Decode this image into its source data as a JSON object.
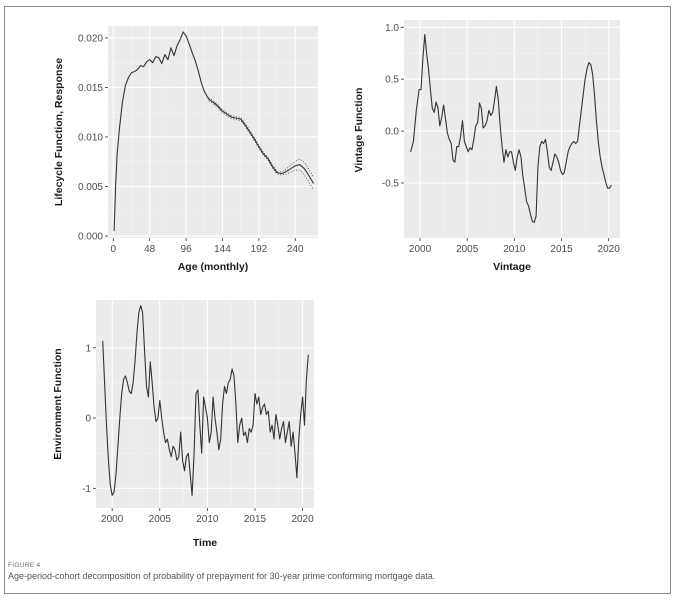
{
  "figure": {
    "label": "FIGURE 4",
    "caption": "Age-period-cohort decomposition of probability of prepayment for 30-year prime conforming mortgage data."
  },
  "chart_data": [
    {
      "id": "lifecycle",
      "type": "line",
      "xlabel": "Age (monthly)",
      "ylabel": "Lifecycle Function, Response",
      "xlim": [
        -7,
        270
      ],
      "ylim": [
        -0.0002,
        0.0212
      ],
      "xticks": [
        0,
        48,
        96,
        144,
        192,
        240
      ],
      "xtick_labels": [
        "0",
        "48",
        "96",
        "144",
        "192",
        "240"
      ],
      "yticks": [
        0.0,
        0.005,
        0.01,
        0.015,
        0.02
      ],
      "ytick_labels": [
        "0.000",
        "0.005",
        "0.010",
        "0.015",
        "0.020"
      ],
      "grid": true,
      "series": [
        {
          "style": "solid",
          "x": [
            1,
            3,
            5,
            8,
            12,
            16,
            20,
            24,
            28,
            32,
            36,
            40,
            44,
            48,
            52,
            56,
            60,
            64,
            68,
            72,
            76,
            80,
            84,
            88,
            92,
            96,
            100,
            104,
            108,
            112,
            116,
            120,
            126,
            132,
            138,
            144,
            150,
            156,
            162,
            168,
            174,
            180,
            186,
            192,
            198,
            204,
            210,
            216,
            222,
            228,
            234,
            240,
            246,
            252,
            258,
            264
          ],
          "y": [
            0.0005,
            0.005,
            0.0082,
            0.0108,
            0.0135,
            0.0152,
            0.016,
            0.0165,
            0.0166,
            0.0168,
            0.0172,
            0.0171,
            0.0176,
            0.0178,
            0.0175,
            0.0181,
            0.018,
            0.0174,
            0.0183,
            0.0178,
            0.019,
            0.0182,
            0.0192,
            0.0198,
            0.0206,
            0.0202,
            0.0194,
            0.0185,
            0.0177,
            0.0167,
            0.0155,
            0.0146,
            0.0138,
            0.0135,
            0.0131,
            0.0126,
            0.0123,
            0.012,
            0.0119,
            0.0118,
            0.0112,
            0.0105,
            0.0098,
            0.009,
            0.0083,
            0.0078,
            0.007,
            0.0064,
            0.0063,
            0.0065,
            0.0068,
            0.0071,
            0.0072,
            0.0068,
            0.0061,
            0.0053
          ]
        },
        {
          "style": "dotted",
          "x": [
            126,
            132,
            138,
            144,
            150,
            156,
            162,
            168,
            174,
            180,
            186,
            192,
            198,
            204,
            210,
            216,
            222,
            228,
            234,
            240,
            246,
            252,
            258,
            264
          ],
          "y": [
            0.01395,
            0.01365,
            0.01325,
            0.01275,
            0.01245,
            0.01215,
            0.01205,
            0.01195,
            0.01135,
            0.01065,
            0.00995,
            0.00915,
            0.00845,
            0.00795,
            0.00715,
            0.00655,
            0.00645,
            0.00675,
            0.00715,
            0.00755,
            0.00775,
            0.00745,
            0.00675,
            0.00595
          ]
        },
        {
          "style": "dotted",
          "x": [
            126,
            132,
            138,
            144,
            150,
            156,
            162,
            168,
            174,
            180,
            186,
            192,
            198,
            204,
            210,
            216,
            222,
            228,
            234,
            240,
            246,
            252,
            258,
            264
          ],
          "y": [
            0.01365,
            0.01335,
            0.01295,
            0.01245,
            0.01215,
            0.01185,
            0.01175,
            0.01165,
            0.01105,
            0.01035,
            0.00965,
            0.00885,
            0.00815,
            0.00765,
            0.00685,
            0.00625,
            0.00615,
            0.00625,
            0.00645,
            0.00665,
            0.00665,
            0.00615,
            0.00545,
            0.00465
          ]
        }
      ]
    },
    {
      "id": "vintage",
      "type": "line",
      "xlabel": "Vintage",
      "ylabel": "Vintage Function",
      "xlim": [
        1998.3,
        2021.2
      ],
      "ylim": [
        -1.03,
        1.07
      ],
      "xticks": [
        2000,
        2005,
        2010,
        2015,
        2020
      ],
      "xtick_labels": [
        "2000",
        "2005",
        "2010",
        "2015",
        "2020"
      ],
      "yticks": [
        -0.5,
        0.0,
        0.5,
        1.0
      ],
      "ytick_labels": [
        "-0.5",
        "0.0",
        "0.5",
        "1.0"
      ],
      "grid": true,
      "series": [
        {
          "style": "solid",
          "x": [
            1999.0,
            1999.3,
            1999.6,
            1999.9,
            2000.1,
            2000.3,
            2000.5,
            2000.7,
            2000.9,
            2001.1,
            2001.3,
            2001.5,
            2001.7,
            2001.9,
            2002.1,
            2002.3,
            2002.5,
            2002.7,
            2002.9,
            2003.1,
            2003.3,
            2003.5,
            2003.7,
            2003.9,
            2004.1,
            2004.3,
            2004.5,
            2004.7,
            2004.9,
            2005.1,
            2005.3,
            2005.5,
            2005.7,
            2005.9,
            2006.1,
            2006.3,
            2006.5,
            2006.7,
            2006.9,
            2007.1,
            2007.3,
            2007.5,
            2007.7,
            2007.9,
            2008.1,
            2008.3,
            2008.5,
            2008.7,
            2008.9,
            2009.1,
            2009.3,
            2009.5,
            2009.7,
            2009.9,
            2010.1,
            2010.3,
            2010.5,
            2010.7,
            2010.9,
            2011.1,
            2011.3,
            2011.5,
            2011.7,
            2011.9,
            2012.1,
            2012.3,
            2012.5,
            2012.7,
            2012.9,
            2013.1,
            2013.3,
            2013.5,
            2013.7,
            2013.9,
            2014.1,
            2014.3,
            2014.5,
            2014.7,
            2014.9,
            2015.1,
            2015.3,
            2015.5,
            2015.7,
            2015.9,
            2016.1,
            2016.3,
            2016.5,
            2016.7,
            2016.9,
            2017.1,
            2017.3,
            2017.5,
            2017.7,
            2017.9,
            2018.1,
            2018.3,
            2018.5,
            2018.7,
            2018.9,
            2019.1,
            2019.3,
            2019.5,
            2019.7,
            2019.9,
            2020.1,
            2020.3
          ],
          "y": [
            -0.2,
            -0.1,
            0.2,
            0.4,
            0.4,
            0.7,
            0.93,
            0.75,
            0.6,
            0.4,
            0.22,
            0.18,
            0.28,
            0.22,
            0.05,
            0.13,
            0.25,
            0.12,
            -0.02,
            -0.08,
            -0.12,
            -0.28,
            -0.3,
            -0.15,
            -0.15,
            -0.05,
            0.1,
            -0.1,
            -0.15,
            -0.2,
            -0.16,
            -0.18,
            -0.08,
            0.05,
            0.08,
            0.27,
            0.22,
            0.03,
            0.05,
            0.1,
            0.2,
            0.15,
            0.18,
            0.3,
            0.43,
            0.3,
            0.05,
            -0.15,
            -0.3,
            -0.18,
            -0.25,
            -0.2,
            -0.2,
            -0.3,
            -0.38,
            -0.25,
            -0.18,
            -0.25,
            -0.43,
            -0.55,
            -0.68,
            -0.72,
            -0.8,
            -0.87,
            -0.88,
            -0.82,
            -0.35,
            -0.15,
            -0.1,
            -0.12,
            -0.08,
            -0.2,
            -0.35,
            -0.38,
            -0.3,
            -0.22,
            -0.25,
            -0.3,
            -0.38,
            -0.42,
            -0.4,
            -0.3,
            -0.2,
            -0.15,
            -0.12,
            -0.1,
            -0.12,
            -0.1,
            0.05,
            0.2,
            0.35,
            0.5,
            0.6,
            0.66,
            0.64,
            0.55,
            0.35,
            0.1,
            -0.1,
            -0.25,
            -0.35,
            -0.42,
            -0.5,
            -0.55,
            -0.55,
            -0.52
          ]
        }
      ]
    },
    {
      "id": "environment",
      "type": "line",
      "xlabel": "Time",
      "ylabel": "Environment Function",
      "xlim": [
        1998.3,
        2021.2
      ],
      "ylim": [
        -1.28,
        1.68
      ],
      "xticks": [
        2000,
        2005,
        2010,
        2015,
        2020
      ],
      "xtick_labels": [
        "2000",
        "2005",
        "2010",
        "2015",
        "2020"
      ],
      "yticks": [
        -1,
        0,
        1
      ],
      "ytick_labels": [
        "-1",
        "0",
        "1"
      ],
      "grid": true,
      "series": [
        {
          "style": "solid",
          "x": [
            1999.0,
            1999.2,
            1999.4,
            1999.6,
            1999.8,
            2000.0,
            2000.2,
            2000.4,
            2000.6,
            2000.8,
            2001.0,
            2001.2,
            2001.4,
            2001.6,
            2001.8,
            2002.0,
            2002.2,
            2002.4,
            2002.6,
            2002.8,
            2003.0,
            2003.2,
            2003.4,
            2003.6,
            2003.8,
            2004.0,
            2004.2,
            2004.4,
            2004.6,
            2004.8,
            2005.0,
            2005.2,
            2005.4,
            2005.6,
            2005.8,
            2006.0,
            2006.2,
            2006.4,
            2006.6,
            2006.8,
            2007.0,
            2007.2,
            2007.4,
            2007.6,
            2007.8,
            2008.0,
            2008.2,
            2008.4,
            2008.6,
            2008.8,
            2009.0,
            2009.2,
            2009.4,
            2009.6,
            2009.8,
            2010.0,
            2010.2,
            2010.4,
            2010.6,
            2010.8,
            2011.0,
            2011.2,
            2011.4,
            2011.6,
            2011.8,
            2012.0,
            2012.2,
            2012.4,
            2012.6,
            2012.8,
            2013.0,
            2013.2,
            2013.4,
            2013.6,
            2013.8,
            2014.0,
            2014.2,
            2014.4,
            2014.6,
            2014.8,
            2015.0,
            2015.2,
            2015.4,
            2015.6,
            2015.8,
            2016.0,
            2016.2,
            2016.4,
            2016.6,
            2016.8,
            2017.0,
            2017.2,
            2017.4,
            2017.6,
            2017.8,
            2018.0,
            2018.2,
            2018.4,
            2018.6,
            2018.8,
            2019.0,
            2019.2,
            2019.4,
            2019.6,
            2019.8,
            2020.0,
            2020.2,
            2020.4,
            2020.6
          ],
          "y": [
            1.1,
            0.5,
            -0.1,
            -0.6,
            -0.95,
            -1.1,
            -1.05,
            -0.8,
            -0.4,
            0.0,
            0.35,
            0.55,
            0.6,
            0.5,
            0.38,
            0.35,
            0.5,
            0.8,
            1.2,
            1.5,
            1.6,
            1.5,
            0.95,
            0.45,
            0.3,
            0.8,
            0.5,
            0.15,
            -0.05,
            0.0,
            0.25,
            0.0,
            -0.2,
            -0.35,
            -0.3,
            -0.45,
            -0.55,
            -0.4,
            -0.45,
            -0.6,
            -0.55,
            -0.2,
            -0.6,
            -0.75,
            -0.55,
            -0.5,
            -0.8,
            -1.1,
            -0.5,
            0.35,
            0.4,
            -0.1,
            -0.5,
            0.3,
            0.15,
            0.0,
            -0.35,
            -0.2,
            0.3,
            0.0,
            -0.2,
            -0.45,
            -0.3,
            0.2,
            0.45,
            0.35,
            0.5,
            0.55,
            0.7,
            0.6,
            0.2,
            -0.35,
            -0.1,
            0.0,
            -0.25,
            -0.2,
            -0.35,
            -0.15,
            -0.2,
            -0.1,
            0.35,
            0.2,
            0.3,
            0.05,
            0.15,
            0.2,
            0.05,
            0.1,
            -0.2,
            -0.1,
            -0.3,
            0.05,
            -0.1,
            -0.3,
            -0.15,
            -0.05,
            -0.35,
            -0.2,
            -0.05,
            -0.4,
            -0.2,
            -0.5,
            -0.85,
            -0.3,
            0.05,
            0.3,
            -0.1,
            0.55,
            0.9
          ]
        }
      ]
    }
  ]
}
